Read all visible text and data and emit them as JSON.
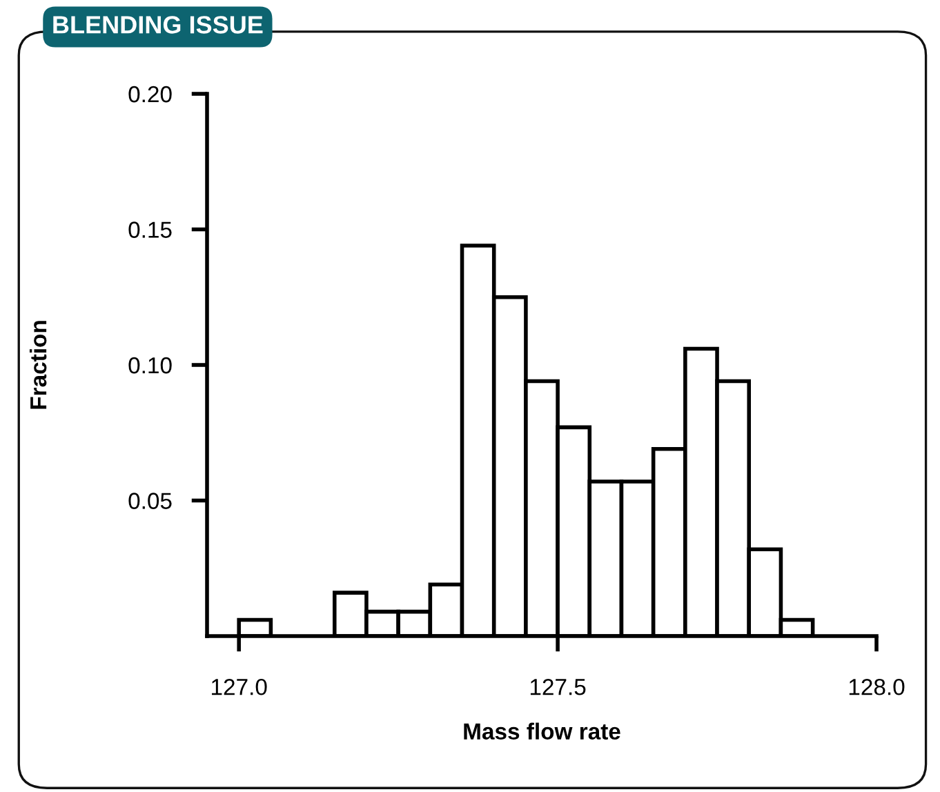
{
  "chart_data": {
    "type": "histogram",
    "title": "BLENDING ISSUE",
    "xlabel": "Mass flow rate",
    "ylabel": "Fraction",
    "bins": [
      127.0,
      127.05,
      127.1,
      127.15,
      127.2,
      127.25,
      127.3,
      127.35,
      127.4,
      127.45,
      127.5,
      127.55,
      127.6,
      127.65,
      127.7,
      127.75,
      127.8,
      127.85,
      127.9
    ],
    "values": [
      0.006,
      0,
      0,
      0.016,
      0.009,
      0.009,
      0.019,
      0.144,
      0.125,
      0.094,
      0.077,
      0.057,
      0.057,
      0.069,
      0.106,
      0.094,
      0.032,
      0.006
    ],
    "color": "#ffffff",
    "xlim": [
      126.95,
      128.0
    ],
    "xticks": [
      {
        "value": 127.0,
        "label": "127.0"
      },
      127.5,
      {
        "value": 128.0,
        "label": "128.0"
      }
    ],
    "ylim": [
      0,
      0.2
    ],
    "yticks": [
      {
        "value": 0.05,
        "label": "0.05"
      },
      {
        "value": 0.1,
        "label": "0.10"
      },
      {
        "value": 0.15,
        "label": "0.15"
      },
      {
        "value": 0.2,
        "label": "0.20"
      }
    ],
    "grid": false,
    "legend": false
  }
}
